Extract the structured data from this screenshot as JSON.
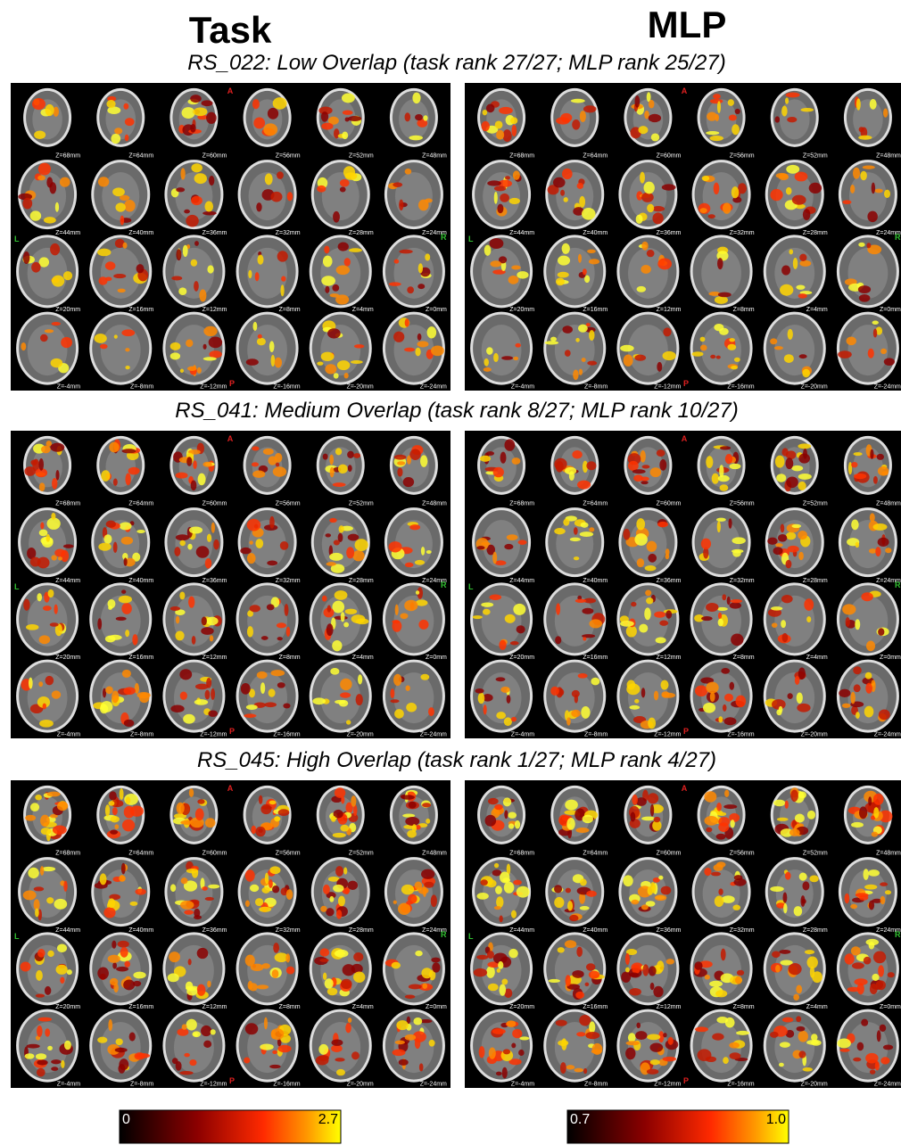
{
  "header": {
    "columns": [
      "Task",
      "MLP"
    ]
  },
  "rows": [
    {
      "title": "RS_022: Low Overlap (task rank 27/27; MLP rank 25/27)"
    },
    {
      "title": "RS_041: Medium Overlap (task rank 8/27; MLP rank 10/27)"
    },
    {
      "title": "RS_045: High Overlap (task rank 1/27; MLP rank 4/27)"
    }
  ],
  "orientation": {
    "anterior": "A",
    "posterior": "P",
    "left": "L",
    "right": "R"
  },
  "slice_labels": [
    "Z=68mm",
    "Z=64mm",
    "Z=60mm",
    "Z=56mm",
    "Z=52mm",
    "Z=48mm",
    "Z=44mm",
    "Z=40mm",
    "Z=36mm",
    "Z=32mm",
    "Z=28mm",
    "Z=24mm",
    "Z=20mm",
    "Z=16mm",
    "Z=12mm",
    "Z=8mm",
    "Z=4mm",
    "Z=0mm",
    "Z=-4mm",
    "Z=-8mm",
    "Z=-12mm",
    "Z=-16mm",
    "Z=-20mm",
    "Z=-24mm"
  ],
  "colorbars": [
    {
      "min": "0",
      "max": "2.7"
    },
    {
      "min": "0.7",
      "max": "1.0"
    }
  ]
}
